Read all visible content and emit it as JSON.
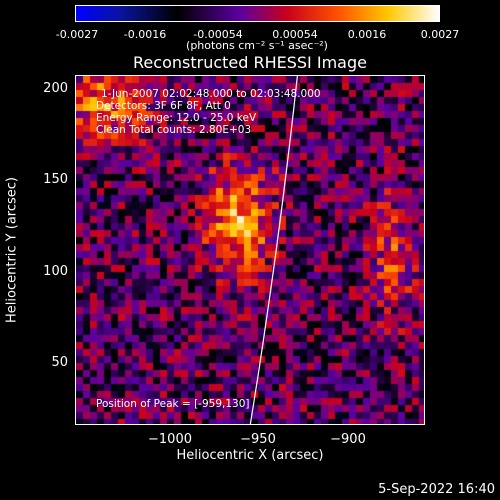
{
  "colorbar": {
    "ticks": [
      "-0.0027",
      "-0.0016",
      "-0.00054",
      "0.00054",
      "0.0016",
      "0.0027"
    ],
    "units_label": "(photons cm⁻² s⁻¹ asec⁻²)",
    "range": [
      -0.0027,
      0.0027
    ]
  },
  "chart_data": {
    "type": "heatmap",
    "title": "Reconstructed RHESSI Image",
    "xlabel": "Heliocentric X (arcsec)",
    "ylabel": "Heliocentric Y (arcsec)",
    "xlim": [
      -1045,
      -860
    ],
    "ylim": [
      15,
      210
    ],
    "x_ticks": [
      "−1000",
      "−950",
      "−900"
    ],
    "y_ticks": [
      "200",
      "150",
      "100",
      "50"
    ],
    "info_lines": [
      "1-Jun-2007 02:02:48.000 to 02:03:48.000",
      "Detectors: 3F 6F 8F, Att 0",
      "Energy Range: 12.0 - 25.0 keV",
      "Clean    Total counts: 2.80E+03"
    ],
    "peak_label": "Position of Peak = [-959,130]",
    "peak_position": [
      -959,
      130
    ],
    "limb_visible": true
  },
  "footer": {
    "timestamp": "5-Sep-2022 16:40"
  }
}
